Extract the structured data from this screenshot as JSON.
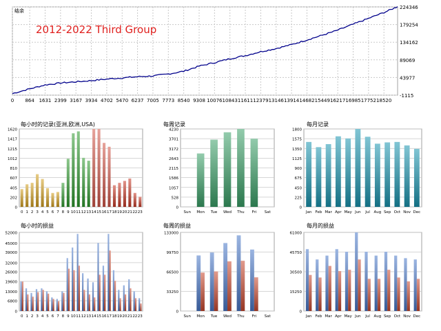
{
  "colors": {
    "balance_line": "#00008b",
    "title": "#e0201e",
    "grid": "#c8c8c8",
    "frame": "#a0a0a0"
  },
  "chart_data": [
    {
      "id": "balance",
      "type": "line",
      "corner_label": "结余",
      "title": "2012-2022 Third Group",
      "x_ticks": [
        0,
        864,
        1631,
        2399,
        3167,
        3934,
        4702,
        5470,
        6237,
        7005,
        7773,
        8540,
        9308,
        10076,
        10843,
        11611,
        12379,
        13146,
        13914,
        14682,
        15449,
        16217,
        16985,
        17752,
        18520
      ],
      "y_ticks": [
        -1115,
        43977,
        89069,
        134162,
        179254,
        224346
      ],
      "xlim": [
        0,
        19200
      ],
      "ylim": [
        -1115,
        224346
      ],
      "x": [
        0,
        864,
        1631,
        2399,
        3167,
        3934,
        4702,
        5470,
        6237,
        7005,
        7773,
        8540,
        9308,
        10076,
        10843,
        11611,
        12379,
        13146,
        13914,
        14682,
        15449,
        16217,
        16985,
        17752,
        18520,
        19200
      ],
      "y": [
        3000,
        15000,
        25000,
        30000,
        33000,
        36000,
        40000,
        43000,
        46000,
        48000,
        53000,
        60000,
        73000,
        82000,
        92000,
        100000,
        110000,
        118000,
        128000,
        140000,
        152000,
        165000,
        180000,
        195000,
        210000,
        225000
      ]
    },
    {
      "id": "hourly-trades",
      "type": "bar",
      "title": "每小时的记录(亚洲,欧洲,USA)",
      "categories": [
        "0",
        "1",
        "2",
        "3",
        "4",
        "5",
        "6",
        "7",
        "8",
        "9",
        "10",
        "11",
        "12",
        "13",
        "14",
        "15",
        "16",
        "17",
        "18",
        "19",
        "20",
        "21",
        "22",
        "23"
      ],
      "values": [
        370,
        470,
        500,
        680,
        580,
        390,
        290,
        310,
        500,
        1000,
        1530,
        1570,
        1020,
        960,
        1620,
        1620,
        1330,
        1250,
        450,
        500,
        540,
        590,
        290,
        210
      ],
      "y_ticks": [
        0,
        202,
        405,
        607,
        810,
        1012,
        1215,
        1417,
        1620
      ],
      "ylim": [
        0,
        1620
      ],
      "bar_colors": [
        "#d4a020",
        "#d4a020",
        "#d4a020",
        "#d4a020",
        "#d4a020",
        "#d4a020",
        "#d4a020",
        "#d4a020",
        "#2e9a2e",
        "#2e9a2e",
        "#2e9a2e",
        "#2e9a2e",
        "#2e9a2e",
        "#2e9a2e",
        "#d4584a",
        "#d4584a",
        "#d4584a",
        "#d4584a",
        "#c83a28",
        "#c83a28",
        "#c83a28",
        "#c83a28",
        "#c83a28",
        "#c83a28"
      ]
    },
    {
      "id": "weekly-trades",
      "type": "bar",
      "title": "每周记录",
      "categories": [
        "Sun",
        "Mon",
        "Tue",
        "Wed",
        "Thu",
        "Fri",
        "Sat"
      ],
      "values": [
        0,
        2900,
        3650,
        4050,
        4230,
        3700,
        0
      ],
      "y_ticks": [
        0,
        528,
        1057,
        1586,
        2115,
        2643,
        3172,
        3701,
        4230
      ],
      "ylim": [
        0,
        4230
      ],
      "bar_color": "#3aa068"
    },
    {
      "id": "monthly-trades",
      "type": "bar",
      "title": "每月记录",
      "categories": [
        "Jan",
        "Feb",
        "Mar",
        "Apr",
        "May",
        "Jun",
        "Jul",
        "Aug",
        "Sep",
        "Oct",
        "Nov",
        "Dec"
      ],
      "values": [
        1500,
        1380,
        1450,
        1630,
        1580,
        1800,
        1620,
        1460,
        1490,
        1500,
        1420,
        1340
      ],
      "y_ticks": [
        0,
        225,
        450,
        675,
        900,
        1125,
        1350,
        1575,
        1800
      ],
      "ylim": [
        0,
        1800
      ],
      "bar_color": "#1a95b0"
    },
    {
      "id": "hourly-pl",
      "type": "bar",
      "title": "每小时的损益",
      "categories": [
        "0",
        "1",
        "2",
        "3",
        "4",
        "5",
        "6",
        "7",
        "8",
        "9",
        "10",
        "11",
        "12",
        "13",
        "14",
        "15",
        "16",
        "17",
        "18",
        "19",
        "20",
        "21",
        "22",
        "23"
      ],
      "series": [
        {
          "values": [
            19500,
            15000,
            12000,
            14500,
            15000,
            13000,
            9000,
            8000,
            13000,
            35000,
            42000,
            51000,
            25000,
            21500,
            19000,
            45000,
            30000,
            51000,
            27000,
            14000,
            17000,
            21000,
            13000,
            8500
          ]
        },
        {
          "values": [
            19500,
            11000,
            9500,
            12500,
            14000,
            11500,
            8000,
            6500,
            12000,
            28000,
            27000,
            30000,
            14000,
            11000,
            9000,
            24000,
            24000,
            40000,
            20000,
            8500,
            11000,
            15000,
            8500,
            5000
          ]
        }
      ],
      "y_ticks": [
        0,
        6800,
        13000,
        19600,
        26000,
        32000,
        39000,
        45000,
        52000
      ],
      "ylim": [
        0,
        52000
      ]
    },
    {
      "id": "weekly-pl",
      "type": "bar",
      "title": "每周的损益",
      "categories": [
        "Sun",
        "Mon",
        "Tue",
        "Wed",
        "Thu",
        "Fri",
        "Sat"
      ],
      "series": [
        {
          "values": [
            0,
            94000,
            99000,
            115000,
            128000,
            104000,
            0
          ]
        },
        {
          "values": [
            0,
            65000,
            67000,
            84000,
            85000,
            57000,
            0
          ]
        }
      ],
      "y_ticks": [
        0,
        33250,
        66500,
        99750,
        133000
      ],
      "ylim": [
        0,
        133000
      ]
    },
    {
      "id": "monthly-pl",
      "type": "bar",
      "title": "每月的损益",
      "categories": [
        "Jan",
        "Feb",
        "Mar",
        "Apr",
        "May",
        "Jun",
        "Jul",
        "Aug",
        "Sep",
        "Oct",
        "Nov",
        "Dec"
      ],
      "series": [
        {
          "values": [
            48000,
            40000,
            43000,
            48000,
            46000,
            61000,
            46000,
            43000,
            46000,
            43000,
            41000,
            40000
          ]
        },
        {
          "values": [
            28000,
            26000,
            35000,
            31000,
            32000,
            40000,
            25000,
            25000,
            32000,
            26000,
            23000,
            25000
          ]
        }
      ],
      "y_ticks": [
        0,
        15250,
        30500,
        45750,
        61000
      ],
      "ylim": [
        0,
        61000
      ]
    }
  ]
}
